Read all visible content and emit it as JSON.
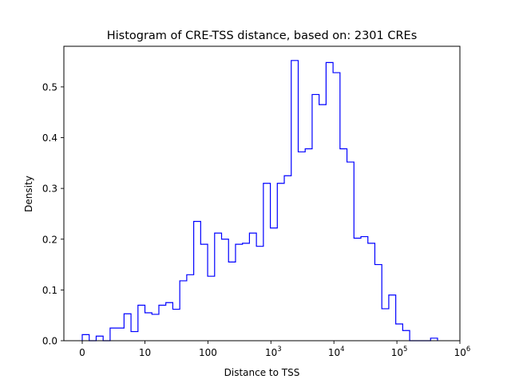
{
  "chart_data": {
    "type": "histogram",
    "title": "Histogram of CRE-TSS distance, based on: 2301 CREs",
    "xlabel": "Distance to TSS",
    "ylabel": "Density",
    "x_scale": "symlog",
    "x_ticks": [
      {
        "value": 0,
        "label": "0"
      },
      {
        "value": 10,
        "label": "10"
      },
      {
        "value": 100,
        "label": "100"
      },
      {
        "value": 1000,
        "base": "10",
        "exp": "3"
      },
      {
        "value": 10000,
        "base": "10",
        "exp": "4"
      },
      {
        "value": 100000,
        "base": "10",
        "exp": "5"
      },
      {
        "value": 1000000,
        "base": "10",
        "exp": "6"
      }
    ],
    "y_ticks": [
      "0.0",
      "0.1",
      "0.2",
      "0.3",
      "0.4",
      "0.5"
    ],
    "ylim": [
      0,
      0.58
    ],
    "xlim_log10": [
      -0.3,
      6.0
    ],
    "grid": false,
    "line_color": "#0000ff",
    "densities": [
      0.012,
      0.0,
      0.009,
      0.0,
      0.025,
      0.025,
      0.053,
      0.018,
      0.07,
      0.055,
      0.052,
      0.07,
      0.075,
      0.062,
      0.118,
      0.13,
      0.235,
      0.19,
      0.127,
      0.212,
      0.2,
      0.155,
      0.19,
      0.192,
      0.212,
      0.186,
      0.31,
      0.222,
      0.31,
      0.325,
      0.552,
      0.372,
      0.378,
      0.485,
      0.465,
      0.548,
      0.528,
      0.378,
      0.352,
      0.202,
      0.205,
      0.192,
      0.15,
      0.063,
      0.09,
      0.033,
      0.02,
      0.0,
      0.0,
      0.0,
      0.005
    ]
  }
}
